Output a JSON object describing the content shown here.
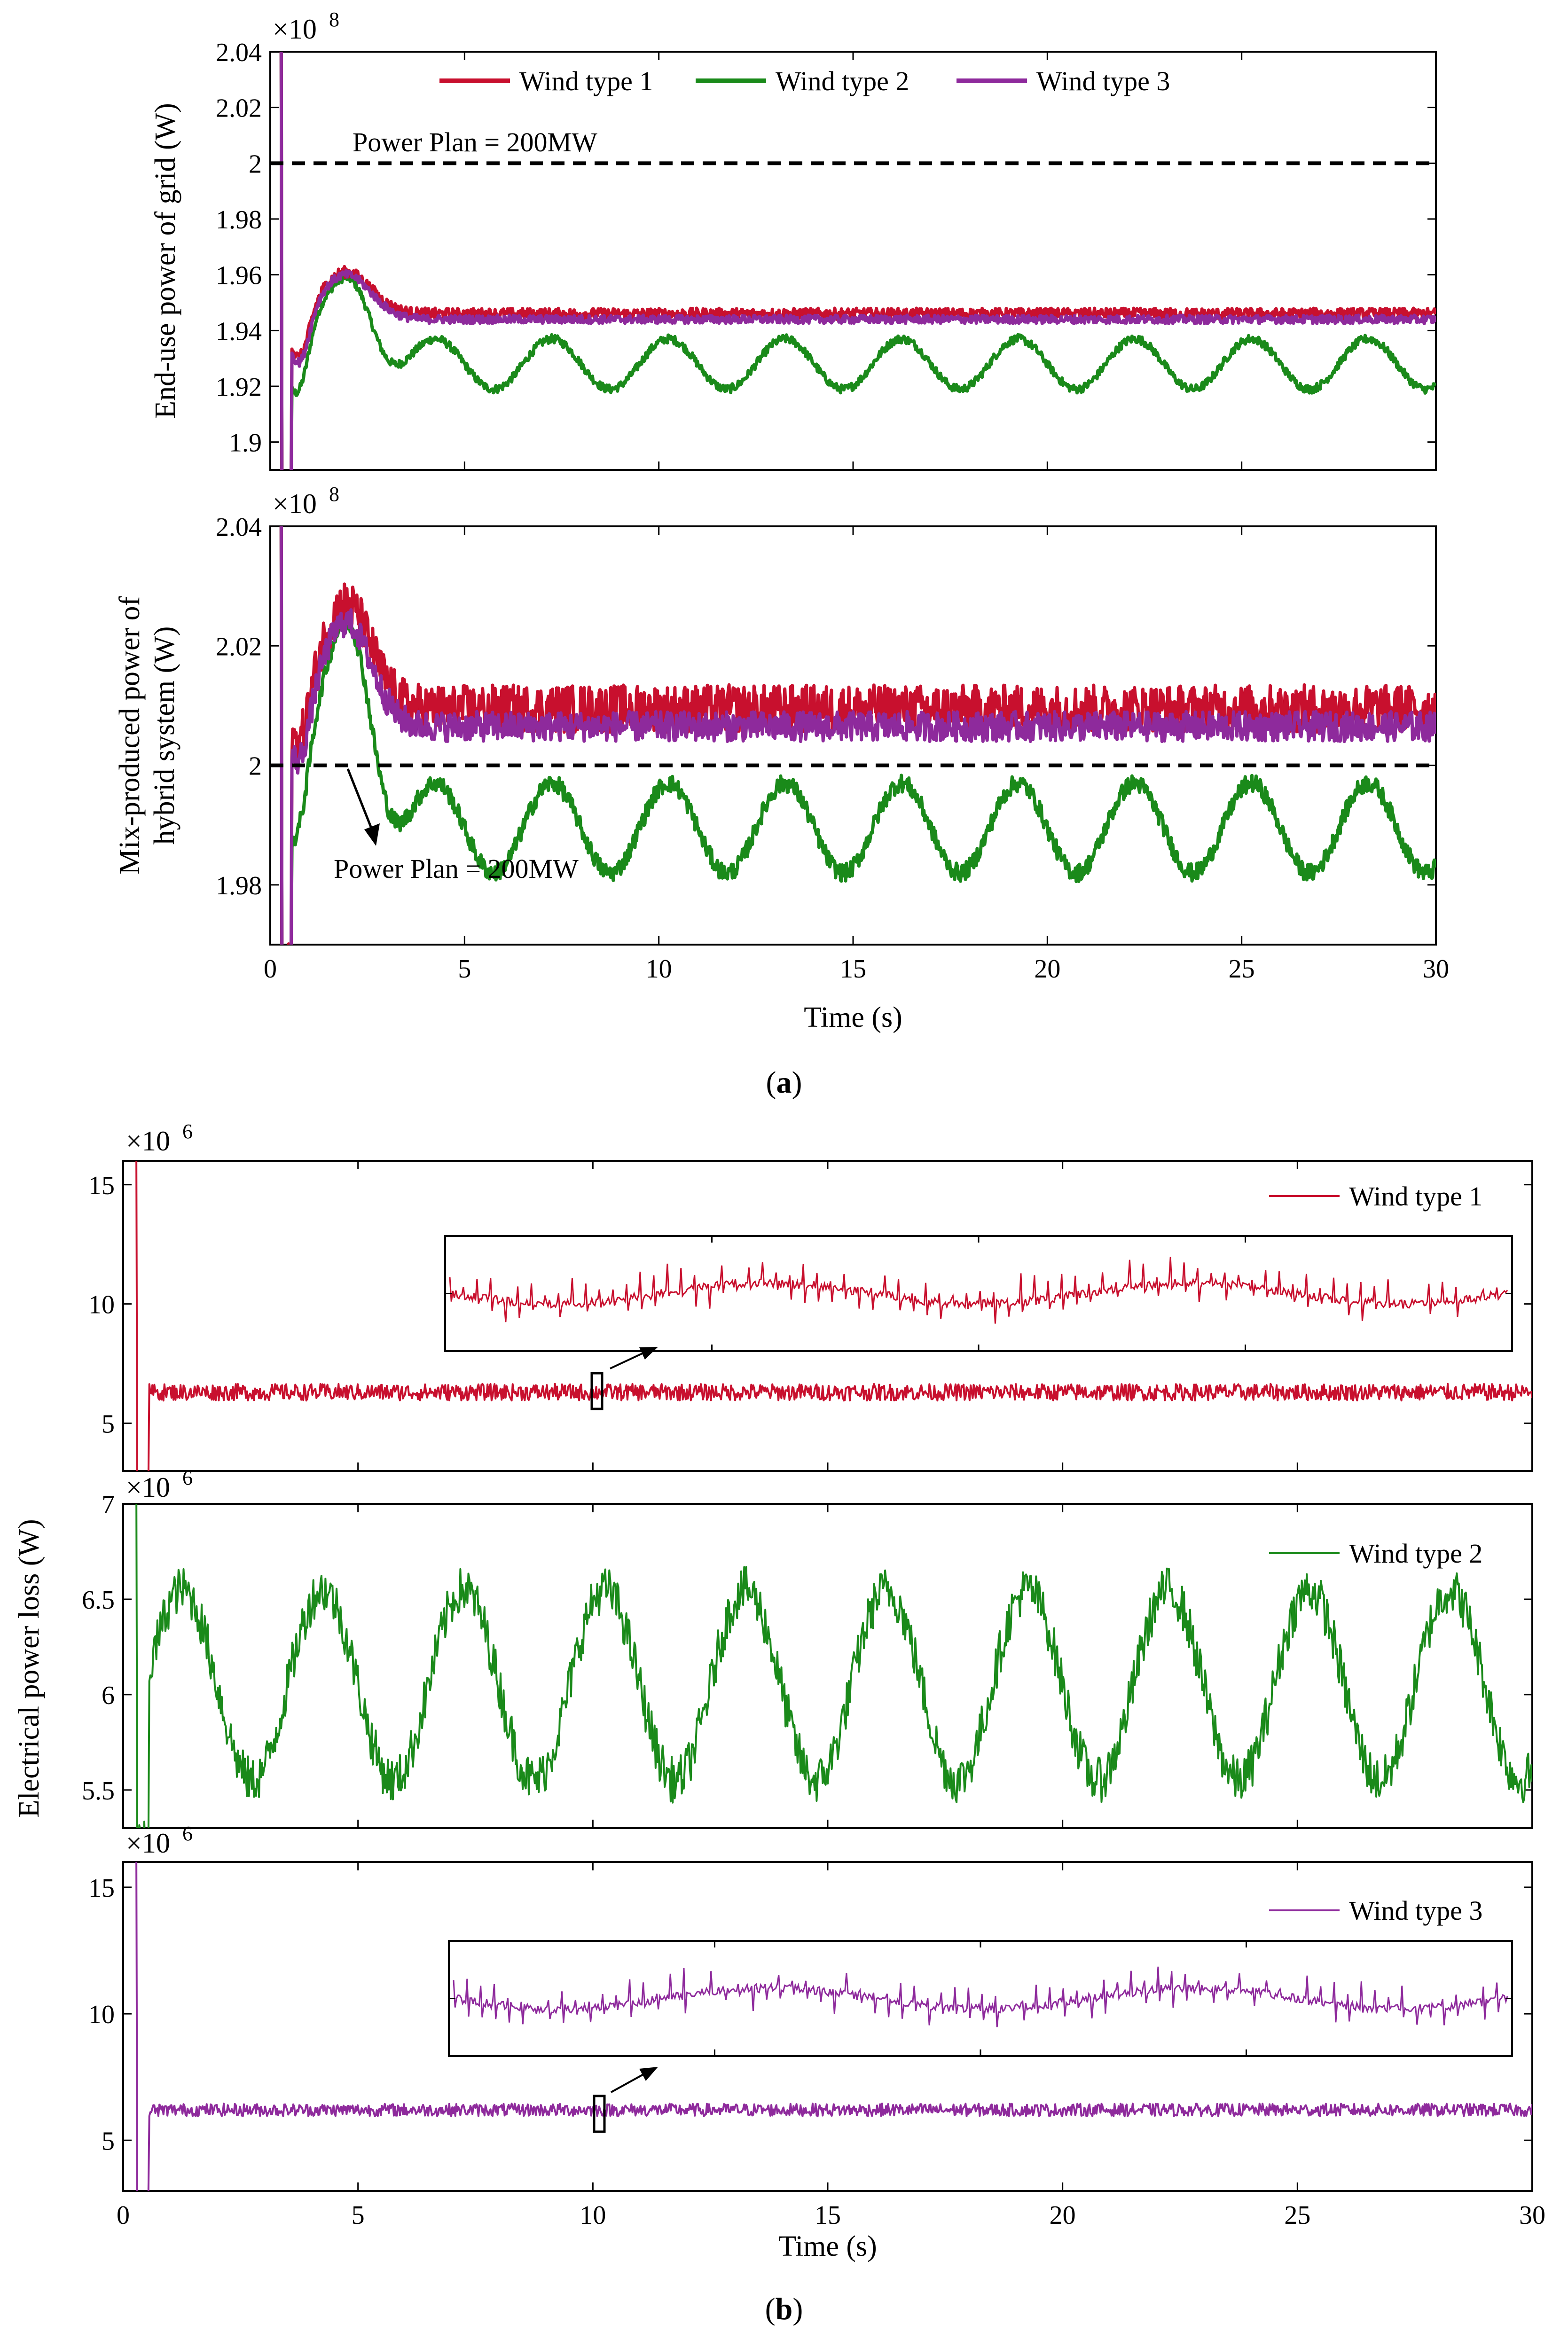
{
  "figure": {
    "caption_a": "a",
    "caption_b": "b",
    "exp_8": "×10",
    "exp_8_sup": "8",
    "exp_6": "×10",
    "exp_6_sup": "6",
    "ylabel_b_shared": "Electrical power loss (W)"
  },
  "colors": {
    "wind1": "#c8102e",
    "wind2": "#1a8a1a",
    "wind3": "#8e2a9c",
    "plan": "#000000"
  },
  "chart_data": [
    {
      "id": "a1",
      "type": "line",
      "title": "",
      "xlabel": "",
      "ylabel": "End-use power of grid (W)",
      "xlim": [
        0,
        30
      ],
      "ylim": [
        1.89,
        2.04
      ],
      "xticks": [
        "0",
        "5",
        "10",
        "15",
        "20",
        "25",
        "30"
      ],
      "yticks": [
        "1.9",
        "1.92",
        "1.94",
        "1.96",
        "1.98",
        "2",
        "2.02",
        "2.04"
      ],
      "legend": [
        "Wind type 1",
        "Wind type 2",
        "Wind type 3"
      ],
      "annotation": "Power Plan = 200MW",
      "plan_value": 2.0,
      "series": [
        {
          "name": "Wind type 1",
          "steady": 1.946,
          "osc_amp": 0.0,
          "osc_period": 3.0,
          "noise": 0.002,
          "peak": 1.961
        },
        {
          "name": "Wind type 2",
          "steady": 1.928,
          "osc_amp": 0.009,
          "osc_period": 3.0,
          "noise": 0.0015,
          "peak": 1.959
        },
        {
          "name": "Wind type 3",
          "steady": 1.944,
          "osc_amp": 0.0,
          "osc_period": 3.0,
          "noise": 0.0015,
          "peak": 1.96
        }
      ]
    },
    {
      "id": "a2",
      "type": "line",
      "title": "",
      "xlabel": "Time (s)",
      "ylabel_line1": "Mix-produced power of",
      "ylabel_line2": "hybrid system (W)",
      "xlim": [
        0,
        30
      ],
      "ylim": [
        1.97,
        2.04
      ],
      "xticks": [
        "0",
        "5",
        "10",
        "15",
        "20",
        "25",
        "30"
      ],
      "yticks": [
        "1.98",
        "2",
        "2.02",
        "2.04"
      ],
      "annotation": "Power Plan = 200MW",
      "plan_value": 2.0,
      "series": [
        {
          "name": "Wind type 1",
          "steady": 2.0095,
          "osc_amp": 0.0,
          "osc_period": 3.0,
          "noise": 0.004,
          "peak": 2.027
        },
        {
          "name": "Wind type 2",
          "steady": 1.9895,
          "osc_amp": 0.0075,
          "osc_period": 3.0,
          "noise": 0.0015,
          "peak": 2.024
        },
        {
          "name": "Wind type 3",
          "steady": 2.0065,
          "osc_amp": 0.0,
          "osc_period": 3.0,
          "noise": 0.0025,
          "peak": 2.024
        }
      ]
    },
    {
      "id": "b1",
      "type": "line",
      "xlabel": "",
      "xlim": [
        0,
        30
      ],
      "ylim": [
        3,
        16
      ],
      "xticks": [
        "0",
        "5",
        "10",
        "15",
        "20",
        "25",
        "30"
      ],
      "yticks": [
        "5",
        "10",
        "15"
      ],
      "legend": [
        "Wind type 1"
      ],
      "series": [
        {
          "name": "Wind type 1",
          "steady": 6.3,
          "osc_amp": 0.0,
          "osc_period": 3.0,
          "noise": 0.35
        }
      ]
    },
    {
      "id": "b2",
      "type": "line",
      "xlabel": "",
      "xlim": [
        0,
        30
      ],
      "ylim": [
        5.3,
        7.0
      ],
      "xticks": [
        "0",
        "5",
        "10",
        "15",
        "20",
        "25",
        "30"
      ],
      "yticks": [
        "5.5",
        "6",
        "6.5",
        "7"
      ],
      "legend": [
        "Wind type 2"
      ],
      "series": [
        {
          "name": "Wind type 2",
          "steady": 6.05,
          "osc_amp": 0.5,
          "osc_period": 3.0,
          "noise": 0.12
        }
      ]
    },
    {
      "id": "b3",
      "type": "line",
      "xlabel": "Time (s)",
      "xlim": [
        0,
        30
      ],
      "ylim": [
        3,
        16
      ],
      "xticks": [
        "0",
        "5",
        "10",
        "15",
        "20",
        "25",
        "30"
      ],
      "yticks": [
        "5",
        "10",
        "15"
      ],
      "legend": [
        "Wind type 3"
      ],
      "series": [
        {
          "name": "Wind type 3",
          "steady": 6.2,
          "osc_amp": 0.0,
          "osc_period": 3.0,
          "noise": 0.25
        }
      ]
    }
  ]
}
